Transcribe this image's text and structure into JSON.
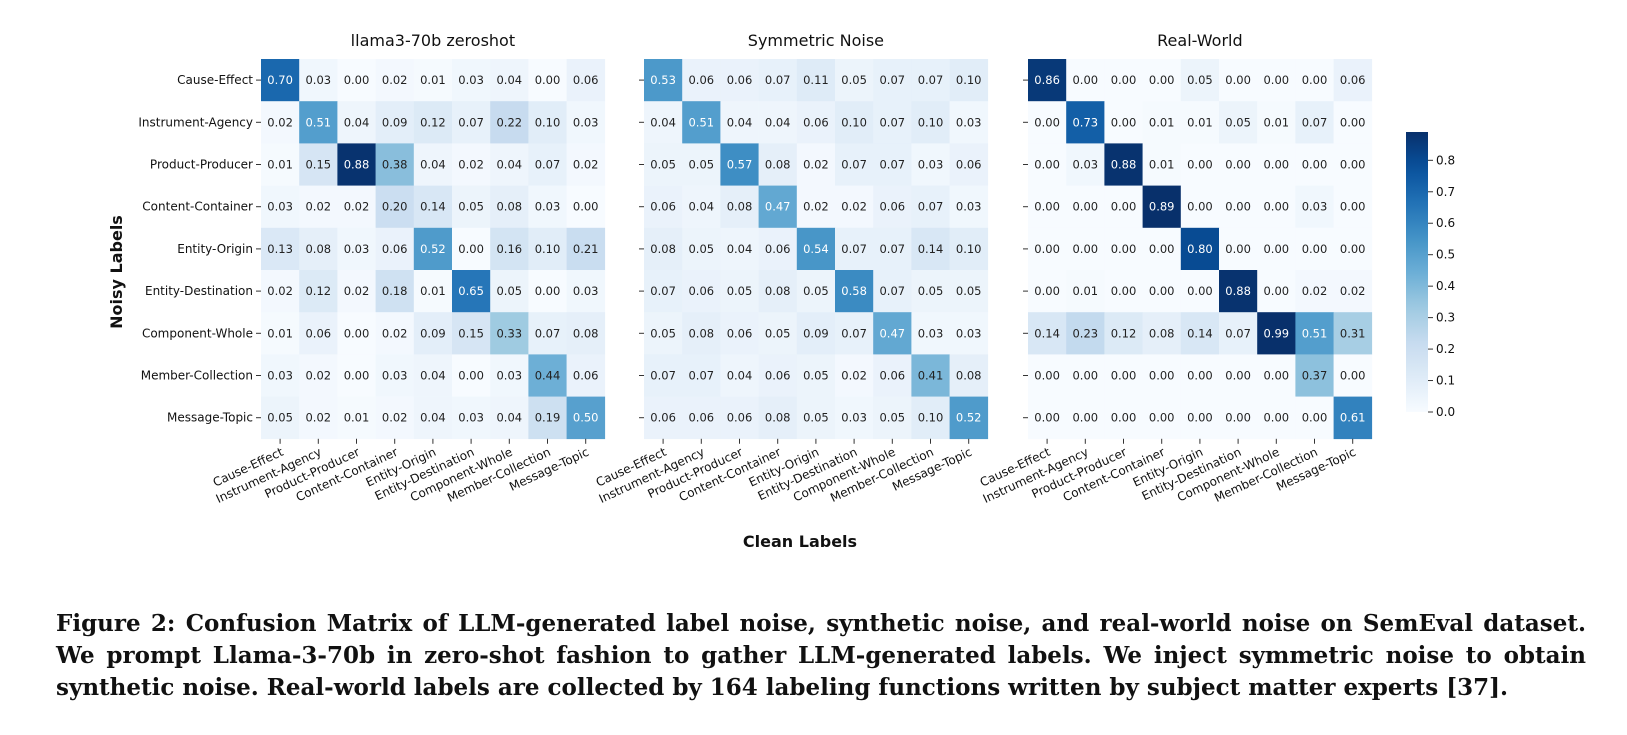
{
  "chart_data": {
    "type": "heatmap",
    "xlabel": "Clean Labels",
    "ylabel": "Noisy Labels",
    "labels": [
      "Cause-Effect",
      "Instrument-Agency",
      "Product-Producer",
      "Content-Container",
      "Entity-Origin",
      "Entity-Destination",
      "Component-Whole",
      "Member-Collection",
      "Message-Topic"
    ],
    "colorbar": {
      "min": 0.0,
      "max": 0.89,
      "ticks": [
        "0.0",
        "0.1",
        "0.2",
        "0.3",
        "0.4",
        "0.5",
        "0.6",
        "0.7",
        "0.8"
      ]
    },
    "panels": [
      {
        "title": "llama3-70b zeroshot",
        "matrix": [
          [
            0.7,
            0.03,
            0.0,
            0.02,
            0.01,
            0.03,
            0.04,
            0.0,
            0.06
          ],
          [
            0.02,
            0.51,
            0.04,
            0.09,
            0.12,
            0.07,
            0.22,
            0.1,
            0.03
          ],
          [
            0.01,
            0.15,
            0.88,
            0.38,
            0.04,
            0.02,
            0.04,
            0.07,
            0.02
          ],
          [
            0.03,
            0.02,
            0.02,
            0.2,
            0.14,
            0.05,
            0.08,
            0.03,
            0.0
          ],
          [
            0.13,
            0.08,
            0.03,
            0.06,
            0.52,
            0.0,
            0.16,
            0.1,
            0.21
          ],
          [
            0.02,
            0.12,
            0.02,
            0.18,
            0.01,
            0.65,
            0.05,
            0.0,
            0.03
          ],
          [
            0.01,
            0.06,
            0.0,
            0.02,
            0.09,
            0.15,
            0.33,
            0.07,
            0.08
          ],
          [
            0.03,
            0.02,
            0.0,
            0.03,
            0.04,
            0.0,
            0.03,
            0.44,
            0.06
          ],
          [
            0.05,
            0.02,
            0.01,
            0.02,
            0.04,
            0.03,
            0.04,
            0.19,
            0.5
          ]
        ]
      },
      {
        "title": "Symmetric Noise",
        "matrix": [
          [
            0.53,
            0.06,
            0.06,
            0.07,
            0.11,
            0.05,
            0.07,
            0.07,
            0.1
          ],
          [
            0.04,
            0.51,
            0.04,
            0.04,
            0.06,
            0.1,
            0.07,
            0.1,
            0.03
          ],
          [
            0.05,
            0.05,
            0.57,
            0.08,
            0.02,
            0.07,
            0.07,
            0.03,
            0.06
          ],
          [
            0.06,
            0.04,
            0.08,
            0.47,
            0.02,
            0.02,
            0.06,
            0.07,
            0.03
          ],
          [
            0.08,
            0.05,
            0.04,
            0.06,
            0.54,
            0.07,
            0.07,
            0.14,
            0.1
          ],
          [
            0.07,
            0.06,
            0.05,
            0.08,
            0.05,
            0.58,
            0.07,
            0.05,
            0.05
          ],
          [
            0.05,
            0.08,
            0.06,
            0.05,
            0.09,
            0.07,
            0.47,
            0.03,
            0.03
          ],
          [
            0.07,
            0.07,
            0.04,
            0.06,
            0.05,
            0.02,
            0.06,
            0.41,
            0.08
          ],
          [
            0.06,
            0.06,
            0.06,
            0.08,
            0.05,
            0.03,
            0.05,
            0.1,
            0.52
          ]
        ]
      },
      {
        "title": "Real-World",
        "matrix": [
          [
            0.86,
            0.0,
            0.0,
            0.0,
            0.05,
            0.0,
            0.0,
            0.0,
            0.06
          ],
          [
            0.0,
            0.73,
            0.0,
            0.01,
            0.01,
            0.05,
            0.01,
            0.07,
            0.0
          ],
          [
            0.0,
            0.03,
            0.88,
            0.01,
            0.0,
            0.0,
            0.0,
            0.0,
            0.0
          ],
          [
            0.0,
            0.0,
            0.0,
            0.89,
            0.0,
            0.0,
            0.0,
            0.03,
            0.0
          ],
          [
            0.0,
            0.0,
            0.0,
            0.0,
            0.8,
            0.0,
            0.0,
            0.0,
            0.0
          ],
          [
            0.0,
            0.01,
            0.0,
            0.0,
            0.0,
            0.88,
            0.0,
            0.02,
            0.02
          ],
          [
            0.14,
            0.23,
            0.12,
            0.08,
            0.14,
            0.07,
            0.99,
            0.51,
            0.31
          ],
          [
            0.0,
            0.0,
            0.0,
            0.0,
            0.0,
            0.0,
            0.0,
            0.37,
            0.0
          ],
          [
            0.0,
            0.0,
            0.0,
            0.0,
            0.0,
            0.0,
            0.0,
            0.0,
            0.61
          ]
        ]
      }
    ]
  },
  "caption": "Figure 2: Confusion Matrix of LLM-generated label noise, synthetic noise, and real-world noise on SemEval dataset. We prompt Llama-3-70b in zero-shot fashion to gather LLM-generated labels. We inject symmetric noise to obtain synthetic noise. Real-world labels are collected by 164 labeling functions written by subject matter experts [37]."
}
